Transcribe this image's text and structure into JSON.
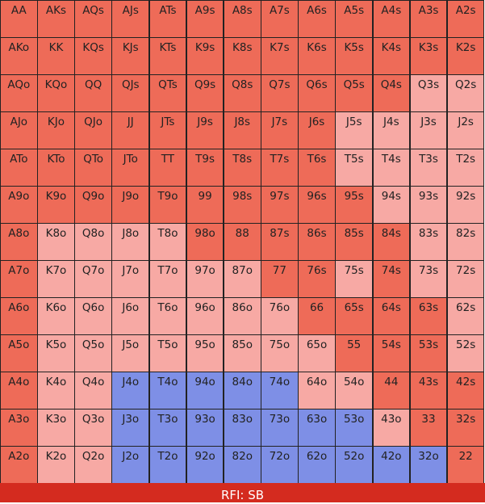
{
  "colors": {
    "raise": "#ee6b58",
    "raise_strong": "#ef6652",
    "mixed": "#f7a9a4",
    "call": "#7e8fe6",
    "border": "#222222",
    "footer": "#d42b1f"
  },
  "legend": {
    "R": "raise",
    "L": "mixed",
    "B": "call"
  },
  "grid": {
    "rows": [
      [
        "AA",
        "AKs",
        "AQs",
        "AJs",
        "ATs",
        "A9s",
        "A8s",
        "A7s",
        "A6s",
        "A5s",
        "A4s",
        "A3s",
        "A2s"
      ],
      [
        "AKo",
        "KK",
        "KQs",
        "KJs",
        "KTs",
        "K9s",
        "K8s",
        "K7s",
        "K6s",
        "K5s",
        "K4s",
        "K3s",
        "K2s"
      ],
      [
        "AQo",
        "KQo",
        "QQ",
        "QJs",
        "QTs",
        "Q9s",
        "Q8s",
        "Q7s",
        "Q6s",
        "Q5s",
        "Q4s",
        "Q3s",
        "Q2s"
      ],
      [
        "AJo",
        "KJo",
        "QJo",
        "JJ",
        "JTs",
        "J9s",
        "J8s",
        "J7s",
        "J6s",
        "J5s",
        "J4s",
        "J3s",
        "J2s"
      ],
      [
        "ATo",
        "KTo",
        "QTo",
        "JTo",
        "TT",
        "T9s",
        "T8s",
        "T7s",
        "T6s",
        "T5s",
        "T4s",
        "T3s",
        "T2s"
      ],
      [
        "A9o",
        "K9o",
        "Q9o",
        "J9o",
        "T9o",
        "99",
        "98s",
        "97s",
        "96s",
        "95s",
        "94s",
        "93s",
        "92s"
      ],
      [
        "A8o",
        "K8o",
        "Q8o",
        "J8o",
        "T8o",
        "98o",
        "88",
        "87s",
        "86s",
        "85s",
        "84s",
        "83s",
        "82s"
      ],
      [
        "A7o",
        "K7o",
        "Q7o",
        "J7o",
        "T7o",
        "97o",
        "87o",
        "77",
        "76s",
        "75s",
        "74s",
        "73s",
        "72s"
      ],
      [
        "A6o",
        "K6o",
        "Q6o",
        "J6o",
        "T6o",
        "96o",
        "86o",
        "76o",
        "66",
        "65s",
        "64s",
        "63s",
        "62s"
      ],
      [
        "A5o",
        "K5o",
        "Q5o",
        "J5o",
        "T5o",
        "95o",
        "85o",
        "75o",
        "65o",
        "55",
        "54s",
        "53s",
        "52s"
      ],
      [
        "A4o",
        "K4o",
        "Q4o",
        "J4o",
        "T4o",
        "94o",
        "84o",
        "74o",
        "64o",
        "54o",
        "44",
        "43s",
        "42s"
      ],
      [
        "A3o",
        "K3o",
        "Q3o",
        "J3o",
        "T3o",
        "93o",
        "83o",
        "73o",
        "63o",
        "53o",
        "43o",
        "33",
        "32s"
      ],
      [
        "A2o",
        "K2o",
        "Q2o",
        "J2o",
        "T2o",
        "92o",
        "82o",
        "72o",
        "62o",
        "52o",
        "42o",
        "32o",
        "22"
      ]
    ],
    "actions": [
      "RRRRRRRRRRRRR",
      "RRRRRRRRRRRRR",
      "RRRRRRRRRRRLL",
      "RRRRRRRRRLLLL",
      "RRRRRRRRRLLLL",
      "RRRRRRRRRRLLL",
      "RLLLLRRRRRRLL",
      "RLLLLLLRRLRLL",
      "RLLLLLLLRRRRL",
      "RLLLLLLLLRRRL",
      "RLLBBBBBLLRRR",
      "RLLBBBBBBBLRR",
      "RLLBBBBBBBBBR"
    ]
  },
  "footer": {
    "label": "RFI: SB"
  }
}
